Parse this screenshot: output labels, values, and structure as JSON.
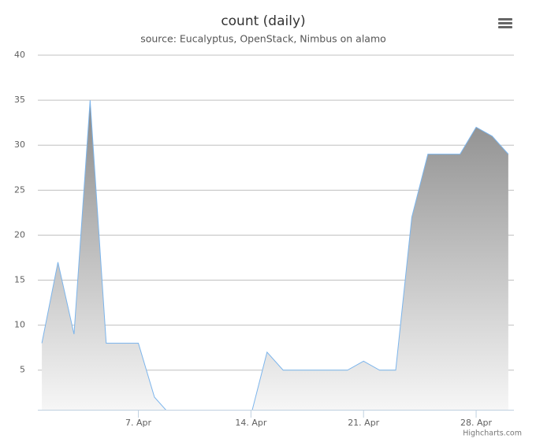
{
  "chart_data": {
    "type": "area",
    "title": "count (daily)",
    "subtitle": "source: Eucalyptus, OpenStack, Nimbus on alamo",
    "credits": "Highcharts.com",
    "x": [
      1,
      2,
      3,
      4,
      5,
      6,
      7,
      8,
      9,
      10,
      11,
      12,
      13,
      14,
      15,
      16,
      17,
      18,
      19,
      20,
      21,
      22,
      23,
      24,
      25,
      26,
      27,
      28,
      29,
      30
    ],
    "series": [
      {
        "name": "count",
        "color": "#7cb5ec",
        "values": [
          8,
          17,
          9,
          35,
          8,
          8,
          8,
          2,
          0,
          0,
          0,
          0,
          0,
          0,
          7,
          5,
          5,
          5,
          5,
          5,
          6,
          5,
          5,
          22,
          29,
          29,
          29,
          32,
          31,
          29
        ]
      }
    ],
    "xlim": [
      0.75,
      30.35
    ],
    "xticks": [
      {
        "value": 7,
        "label": "7. Apr"
      },
      {
        "value": 14,
        "label": "14. Apr"
      },
      {
        "value": 21,
        "label": "21. Apr"
      },
      {
        "value": 28,
        "label": "28. Apr"
      }
    ],
    "ylim": [
      0.6,
      40
    ],
    "yticks": [
      5,
      10,
      15,
      20,
      25,
      30,
      35,
      40
    ],
    "grid": true
  }
}
